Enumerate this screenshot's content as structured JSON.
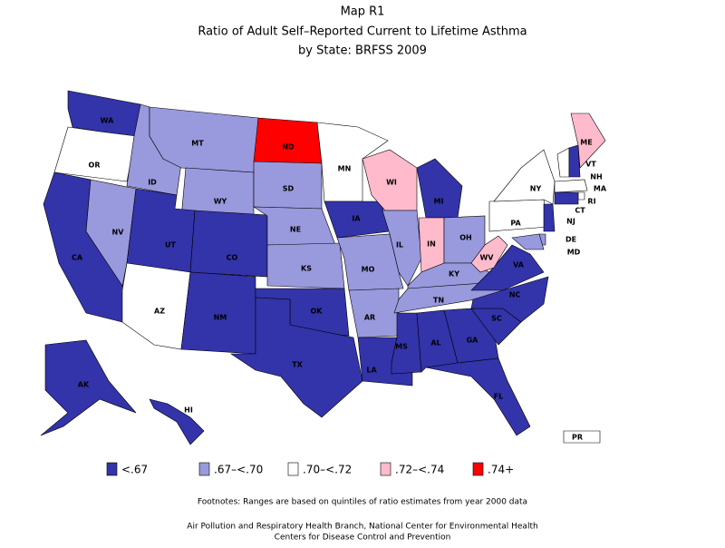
{
  "title": [
    "Map R1",
    "Ratio of Adult Self–Reported Current to Lifetime Asthma",
    "by State: BRFSS 2009"
  ],
  "legend": [
    {
      "label": "<.67",
      "color": "#3333aa"
    },
    {
      "label": ".67–<.70",
      "color": "#9999dd"
    },
    {
      "label": ".70–<.72",
      "color": "#ffffff"
    },
    {
      "label": ".72–<.74",
      "color": "#ffbbcc"
    },
    {
      "label": ".74+",
      "color": "#ff0000"
    }
  ],
  "states": [
    {
      "label": "WA",
      "class": 0
    },
    {
      "label": "OR",
      "class": 2
    },
    {
      "label": "CA",
      "class": 0
    },
    {
      "label": "NV",
      "class": 1
    },
    {
      "label": "ID",
      "class": 1
    },
    {
      "label": "MT",
      "class": 1
    },
    {
      "label": "WY",
      "class": 1
    },
    {
      "label": "UT",
      "class": 0
    },
    {
      "label": "CO",
      "class": 0
    },
    {
      "label": "AZ",
      "class": 2
    },
    {
      "label": "NM",
      "class": 0
    },
    {
      "label": "ND",
      "class": 4
    },
    {
      "label": "SD",
      "class": 1
    },
    {
      "label": "NE",
      "class": 1
    },
    {
      "label": "KS",
      "class": 1
    },
    {
      "label": "OK",
      "class": 0
    },
    {
      "label": "TX",
      "class": 0
    },
    {
      "label": "MN",
      "class": 2
    },
    {
      "label": "IA",
      "class": 0
    },
    {
      "label": "MO",
      "class": 1
    },
    {
      "label": "AR",
      "class": 1
    },
    {
      "label": "LA",
      "class": 0
    },
    {
      "label": "WI",
      "class": 3
    },
    {
      "label": "IL",
      "class": 1
    },
    {
      "label": "MI",
      "class": 0
    },
    {
      "label": "IN",
      "class": 3
    },
    {
      "label": "OH",
      "class": 1
    },
    {
      "label": "KY",
      "class": 1
    },
    {
      "label": "TN",
      "class": 1
    },
    {
      "label": "MS",
      "class": 0
    },
    {
      "label": "AL",
      "class": 0
    },
    {
      "label": "GA",
      "class": 0
    },
    {
      "label": "FL",
      "class": 0
    },
    {
      "label": "SC",
      "class": 0
    },
    {
      "label": "NC",
      "class": 0
    },
    {
      "label": "VA",
      "class": 0
    },
    {
      "label": "WV",
      "class": 3
    },
    {
      "label": "PA",
      "class": 2
    },
    {
      "label": "NY",
      "class": 2
    },
    {
      "label": "VT",
      "class": 2
    },
    {
      "label": "NH",
      "class": 0
    },
    {
      "label": "ME",
      "class": 3
    },
    {
      "label": "MA",
      "class": 2
    },
    {
      "label": "RI",
      "class": 2
    },
    {
      "label": "CT",
      "class": 0
    },
    {
      "label": "NJ",
      "class": 0
    },
    {
      "label": "DE",
      "class": 1
    },
    {
      "label": "MD",
      "class": 1
    },
    {
      "label": "AK",
      "class": 0
    },
    {
      "label": "HI",
      "class": 0
    },
    {
      "label": "PR",
      "class": 2
    }
  ],
  "footnote": "Footnotes: Ranges are based on quintiles of ratio estimates from year 2000 data",
  "credits": [
    "Air Pollution and Respiratory Health Branch, National Center for Environmental Health",
    "Centers for Disease Control and Prevention"
  ]
}
